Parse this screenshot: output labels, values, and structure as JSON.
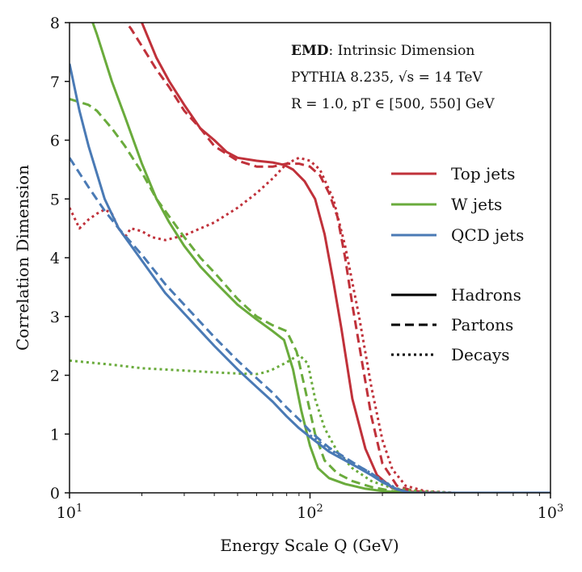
{
  "chart_data": {
    "type": "line",
    "xlabel": "Energy Scale Q (GeV)",
    "ylabel": "Correlation Dimension",
    "xscale": "log",
    "xlim": [
      10,
      1000
    ],
    "ylim": [
      0,
      8
    ],
    "x_ticks": [
      {
        "value": 10,
        "label_base": "10",
        "label_exp": "1"
      },
      {
        "value": 100,
        "label_base": "10",
        "label_exp": "2"
      },
      {
        "value": 1000,
        "label_base": "10",
        "label_exp": "3"
      }
    ],
    "y_ticks": [
      "0",
      "1",
      "2",
      "3",
      "4",
      "5",
      "6",
      "7",
      "8"
    ],
    "grid": false,
    "legend_position": "right",
    "annotations": [
      {
        "bold": "EMD",
        "text": ": Intrinsic Dimension"
      },
      {
        "text": "PYTHIA 8.235, √s = 14 TeV"
      },
      {
        "text": "R = 1.0, pT ∈ [500, 550] GeV"
      }
    ],
    "colors": {
      "top": "#c0313a",
      "w": "#6aab3c",
      "qcd": "#4a7ab5"
    },
    "legend_colors": [
      {
        "label": "Top jets",
        "color": "#c0313a"
      },
      {
        "label": "W jets",
        "color": "#6aab3c"
      },
      {
        "label": "QCD jets",
        "color": "#4a7ab5"
      }
    ],
    "legend_styles": [
      {
        "label": "Hadrons",
        "dash": "solid"
      },
      {
        "label": "Partons",
        "dash": "dashed"
      },
      {
        "label": "Decays",
        "dash": "dotted"
      }
    ],
    "series": [
      {
        "group": "top",
        "style": "solid",
        "color": "#c0313a",
        "x": [
          16.5,
          18,
          20,
          23,
          26,
          30,
          35,
          40,
          45,
          50,
          60,
          70,
          78,
          85,
          95,
          105,
          115,
          125,
          135,
          150,
          170,
          190,
          220,
          260,
          320,
          1000
        ],
        "y": [
          8.3,
          8.2,
          8.0,
          7.4,
          7.0,
          6.6,
          6.2,
          6.0,
          5.8,
          5.7,
          5.65,
          5.62,
          5.58,
          5.5,
          5.3,
          5.0,
          4.4,
          3.6,
          2.8,
          1.6,
          0.75,
          0.3,
          0.08,
          0.02,
          0.0,
          0.0
        ]
      },
      {
        "group": "top",
        "style": "dashed",
        "color": "#c0313a",
        "x": [
          15,
          18,
          20,
          23,
          26,
          30,
          35,
          40,
          50,
          60,
          70,
          80,
          90,
          100,
          110,
          120,
          130,
          140,
          150,
          165,
          180,
          200,
          230,
          270,
          350,
          1000
        ],
        "y": [
          8.3,
          7.9,
          7.6,
          7.2,
          6.9,
          6.5,
          6.2,
          5.9,
          5.65,
          5.55,
          5.55,
          5.6,
          5.6,
          5.55,
          5.4,
          5.1,
          4.7,
          4.0,
          3.2,
          2.2,
          1.3,
          0.5,
          0.12,
          0.03,
          0.0,
          0.0
        ]
      },
      {
        "group": "top",
        "style": "dotted",
        "color": "#c0313a",
        "x": [
          10,
          11,
          12,
          13,
          14,
          15,
          16,
          17,
          18,
          20,
          22,
          25,
          30,
          40,
          50,
          60,
          70,
          80,
          90,
          100,
          110,
          125,
          140,
          160,
          180,
          200,
          220,
          250,
          300,
          400,
          1000
        ],
        "y": [
          4.85,
          4.5,
          4.65,
          4.75,
          4.82,
          4.75,
          4.5,
          4.35,
          4.5,
          4.45,
          4.35,
          4.3,
          4.38,
          4.6,
          4.85,
          5.1,
          5.35,
          5.6,
          5.7,
          5.65,
          5.5,
          5.0,
          4.2,
          3.0,
          1.8,
          0.9,
          0.4,
          0.12,
          0.03,
          0.0,
          0.0
        ]
      },
      {
        "group": "w",
        "style": "solid",
        "color": "#6aab3c",
        "x": [
          12,
          13,
          15,
          17,
          20,
          23,
          26,
          30,
          35,
          40,
          50,
          60,
          70,
          78,
          85,
          92,
          100,
          108,
          120,
          140,
          170,
          200,
          250,
          1000
        ],
        "y": [
          8.2,
          7.8,
          7.0,
          6.4,
          5.6,
          5.0,
          4.6,
          4.2,
          3.85,
          3.6,
          3.2,
          2.95,
          2.75,
          2.6,
          2.1,
          1.4,
          0.8,
          0.42,
          0.25,
          0.15,
          0.07,
          0.03,
          0.0,
          0.0
        ]
      },
      {
        "group": "w",
        "style": "dashed",
        "color": "#6aab3c",
        "x": [
          10,
          12,
          13,
          15,
          17,
          20,
          23,
          26,
          30,
          35,
          40,
          50,
          60,
          70,
          80,
          88,
          95,
          105,
          115,
          130,
          150,
          180,
          220,
          280,
          1000
        ],
        "y": [
          6.7,
          6.6,
          6.5,
          6.2,
          5.9,
          5.45,
          5.0,
          4.7,
          4.35,
          4.0,
          3.75,
          3.3,
          3.0,
          2.85,
          2.75,
          2.4,
          1.8,
          1.0,
          0.55,
          0.33,
          0.2,
          0.1,
          0.03,
          0.0,
          0.0
        ]
      },
      {
        "group": "w",
        "style": "dotted",
        "color": "#6aab3c",
        "x": [
          10,
          15,
          20,
          30,
          40,
          50,
          60,
          65,
          70,
          80,
          90,
          98,
          105,
          115,
          130,
          150,
          180,
          220,
          280,
          400,
          1000
        ],
        "y": [
          2.25,
          2.18,
          2.12,
          2.08,
          2.05,
          2.03,
          2.02,
          2.05,
          2.1,
          2.22,
          2.35,
          2.2,
          1.6,
          1.1,
          0.7,
          0.42,
          0.2,
          0.08,
          0.03,
          0.0,
          0.0
        ]
      },
      {
        "group": "qcd",
        "style": "solid",
        "color": "#4a7ab5",
        "x": [
          10,
          11,
          12,
          14,
          16,
          20,
          25,
          30,
          40,
          50,
          60,
          70,
          80,
          90,
          100,
          110,
          120,
          140,
          160,
          180,
          200,
          230,
          260,
          1000
        ],
        "y": [
          7.3,
          6.5,
          5.9,
          5.0,
          4.5,
          3.95,
          3.4,
          3.05,
          2.5,
          2.1,
          1.8,
          1.55,
          1.3,
          1.1,
          0.95,
          0.82,
          0.7,
          0.55,
          0.42,
          0.3,
          0.18,
          0.06,
          0.0,
          0.0
        ]
      },
      {
        "group": "qcd",
        "style": "dashed",
        "color": "#4a7ab5",
        "x": [
          10,
          12,
          14,
          16,
          20,
          25,
          30,
          40,
          50,
          60,
          70,
          80,
          90,
          100,
          110,
          120,
          140,
          160,
          180,
          200,
          230,
          260,
          1000
        ],
        "y": [
          5.7,
          5.2,
          4.8,
          4.5,
          4.05,
          3.55,
          3.2,
          2.65,
          2.25,
          1.95,
          1.7,
          1.45,
          1.25,
          1.05,
          0.9,
          0.77,
          0.6,
          0.45,
          0.33,
          0.2,
          0.06,
          0.0,
          0.0
        ]
      },
      {
        "group": "qcd",
        "style": "dotted",
        "color": "#4a7ab5",
        "x": [
          100,
          110,
          120,
          140,
          160,
          180,
          200,
          230,
          260,
          1000
        ],
        "y": [
          0.98,
          0.86,
          0.75,
          0.58,
          0.45,
          0.33,
          0.21,
          0.07,
          0.0,
          0.0
        ]
      }
    ]
  }
}
